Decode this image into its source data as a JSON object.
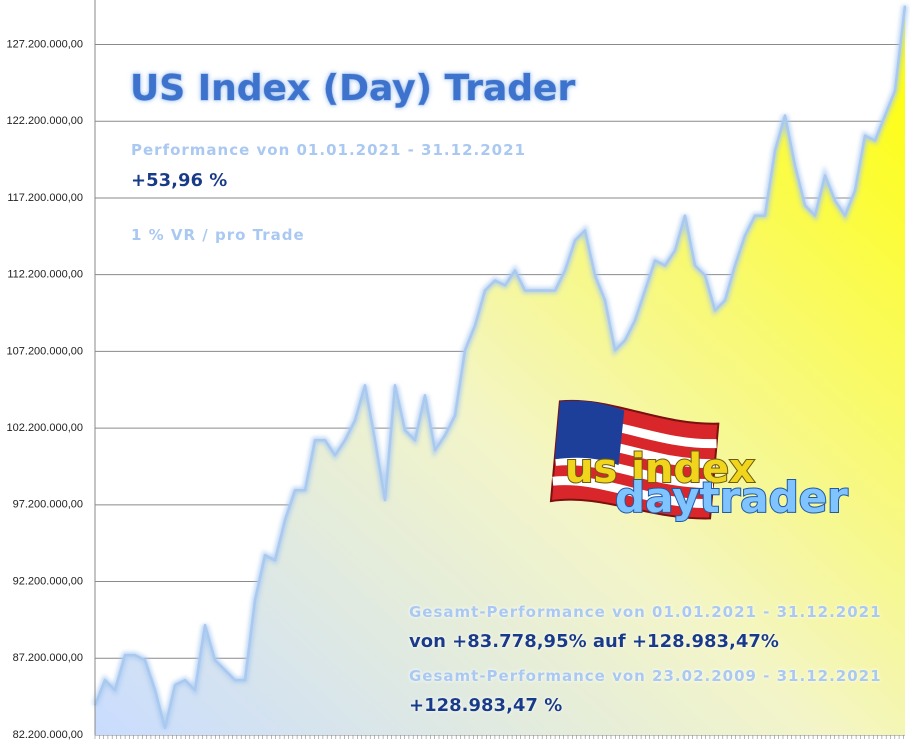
{
  "chart_data": {
    "type": "area",
    "title": "US Index (Day) Trader",
    "annotations": [
      "Performance  von  01.01.2021 - 31.12.2021",
      "+53,96 %",
      "1 % VR / pro Trade",
      "Gesamt-Performance  von  01.01.2021 - 31.12.2021",
      "von +83.778,95% auf  +128.983,47%",
      "Gesamt-Performance  von  23.02.2009 - 31.12.2021",
      "+128.983,47 %"
    ],
    "values": [
      84150000,
      85780000,
      85130000,
      87410000,
      87410000,
      87080000,
      85130000,
      82660000,
      85460000,
      85780000,
      85130000,
      89360000,
      87080000,
      86430000,
      85780000,
      85780000,
      90990000,
      93920000,
      93590000,
      96200000,
      98150000,
      98150000,
      101410000,
      101410000,
      100430000,
      101410000,
      102710000,
      104990000,
      101410000,
      97500000,
      104990000,
      102060000,
      101410000,
      104340000,
      100760000,
      101730000,
      103030000,
      107270000,
      108890000,
      111170000,
      111820000,
      111500000,
      112470000,
      111170000,
      111170000,
      111170000,
      111170000,
      112470000,
      114430000,
      115080000,
      112150000,
      110520000,
      107270000,
      107920000,
      109220000,
      111170000,
      113120000,
      112800000,
      113780000,
      116050000,
      112800000,
      112150000,
      109870000,
      110520000,
      112800000,
      114750000,
      116050000,
      116050000,
      120290000,
      122570000,
      119310000,
      116710000,
      116050000,
      118660000,
      117030000,
      116050000,
      117680000,
      121260000,
      120940000,
      122570000,
      124190000,
      129730000
    ],
    "color": "#a9c9f0",
    "ylim": [
      82200000,
      130100000
    ],
    "yticks": [
      {
        "value": 82200000,
        "label": "82.200.000,00"
      },
      {
        "value": 87200000,
        "label": "87.200.000,00"
      },
      {
        "value": 92200000,
        "label": "92.200.000,00"
      },
      {
        "value": 97200000,
        "label": "97.200.000,00"
      },
      {
        "value": 102200000,
        "label": "102.200.000,00"
      },
      {
        "value": 107200000,
        "label": "107.200.000,00"
      },
      {
        "value": 112200000,
        "label": "112.200.000,00"
      },
      {
        "value": 117200000,
        "label": "117.200.000,00"
      },
      {
        "value": 122200000,
        "label": "122.200.000,00"
      },
      {
        "value": 127200000,
        "label": "127.200.000,00"
      }
    ],
    "grid": true
  },
  "logo": {
    "line1": "us index",
    "line2": "daytrader"
  }
}
